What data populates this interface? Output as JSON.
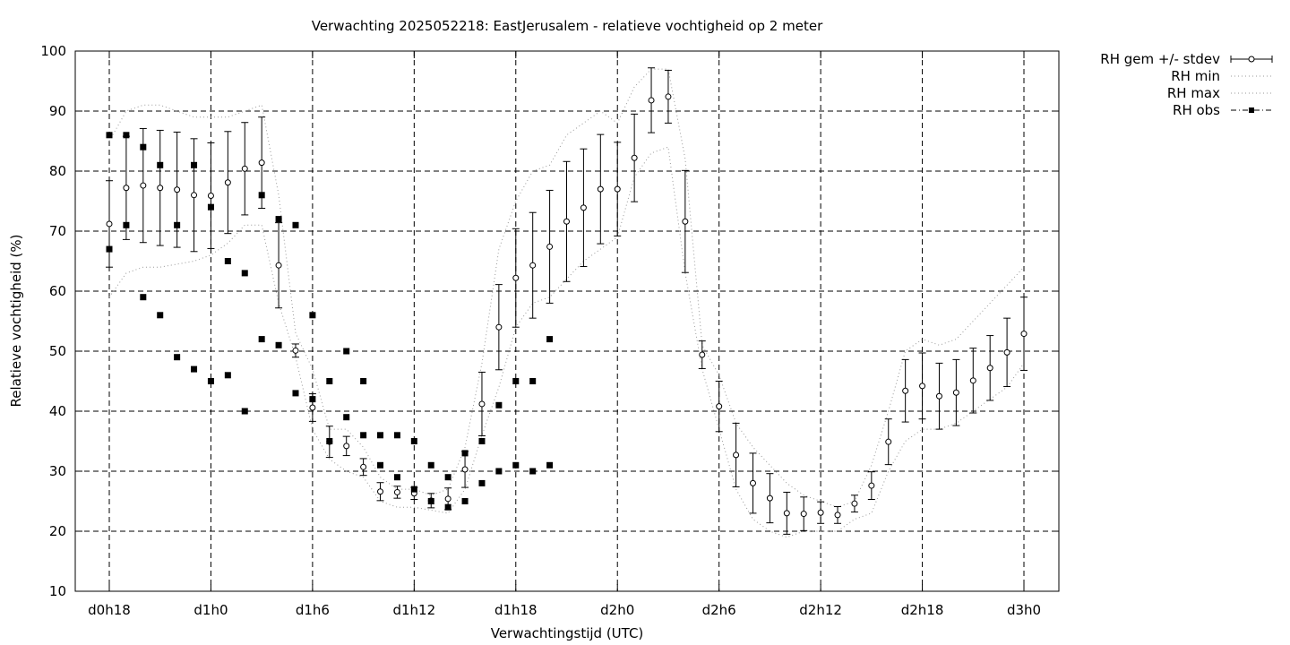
{
  "chart_data": {
    "type": "line",
    "title": "Verwachting 2025052218: EastJerusalem - relatieve vochtigheid op 2 meter",
    "xlabel": "Verwachtingstijd (UTC)",
    "ylabel": "Relatieve vochtigheid (%)",
    "xlim": [
      18,
      78
    ],
    "ylim": [
      10,
      100
    ],
    "grid": true,
    "legend_position": "outside-top-right",
    "x_ticks": [
      {
        "x": 18,
        "label": "d0h18"
      },
      {
        "x": 24,
        "label": "d1h0"
      },
      {
        "x": 30,
        "label": "d1h6"
      },
      {
        "x": 36,
        "label": "d1h12"
      },
      {
        "x": 42,
        "label": "d1h18"
      },
      {
        "x": 48,
        "label": "d2h0"
      },
      {
        "x": 54,
        "label": "d2h6"
      },
      {
        "x": 60,
        "label": "d2h12"
      },
      {
        "x": 66,
        "label": "d2h18"
      },
      {
        "x": 72,
        "label": "d3h0"
      }
    ],
    "y_ticks": [
      10,
      20,
      30,
      40,
      50,
      60,
      70,
      80,
      90,
      100
    ],
    "series": [
      {
        "name": "RH gem +/- stdev",
        "x": [
          18,
          19,
          20,
          21,
          22,
          23,
          24,
          25,
          26,
          27,
          28,
          29,
          30,
          31,
          32,
          33,
          34,
          35,
          36,
          37,
          38,
          39,
          40,
          41,
          42,
          43,
          44,
          45,
          46,
          47,
          48,
          49,
          50,
          51,
          52,
          53,
          54,
          55,
          56,
          57,
          58,
          59,
          60,
          61,
          62,
          63,
          64,
          65,
          66,
          67,
          68,
          69,
          70,
          71,
          72
        ],
        "mean": [
          71.2,
          77.2,
          77.6,
          77.2,
          76.9,
          76.0,
          75.9,
          78.1,
          80.4,
          81.4,
          64.3,
          50.1,
          40.6,
          34.9,
          34.2,
          30.7,
          26.6,
          26.5,
          26.3,
          25.1,
          25.4,
          30.3,
          41.2,
          54.0,
          62.2,
          64.3,
          67.4,
          71.6,
          73.9,
          77.0,
          77.0,
          82.2,
          91.8,
          92.4,
          71.6,
          49.4,
          40.8,
          32.7,
          28.0,
          25.5,
          23.0,
          22.9,
          23.1,
          22.7,
          24.6,
          27.6,
          34.9,
          43.4,
          44.2,
          42.5,
          43.1,
          45.1,
          47.2,
          49.8,
          52.9
        ],
        "stdev": [
          7.2,
          8.6,
          9.5,
          9.6,
          9.6,
          9.4,
          8.8,
          8.5,
          7.7,
          7.6,
          7.1,
          1.1,
          2.3,
          2.6,
          1.6,
          1.4,
          1.5,
          1.0,
          1.0,
          1.2,
          1.8,
          3.0,
          5.3,
          7.1,
          8.2,
          8.8,
          9.4,
          10.0,
          9.8,
          9.1,
          7.8,
          7.3,
          5.4,
          4.4,
          8.5,
          2.3,
          4.2,
          5.3,
          5.0,
          4.1,
          3.5,
          2.8,
          1.8,
          1.4,
          1.4,
          2.3,
          3.8,
          5.2,
          5.5,
          5.5,
          5.5,
          5.4,
          5.4,
          5.7,
          6.1
        ]
      },
      {
        "name": "RH min",
        "x": [
          18,
          19,
          20,
          21,
          22,
          23,
          24,
          25,
          26,
          27,
          28,
          29,
          30,
          31,
          32,
          33,
          34,
          35,
          36,
          37,
          38,
          39,
          40,
          41,
          42,
          43,
          44,
          45,
          46,
          47,
          48,
          49,
          50,
          51,
          52,
          53,
          54,
          55,
          56,
          57,
          58,
          59,
          60,
          61,
          62,
          63,
          64,
          65,
          66,
          67,
          68,
          69,
          70,
          71,
          72
        ],
        "values": [
          59,
          63,
          64,
          64,
          64.5,
          65,
          66,
          68,
          71,
          71,
          58,
          49,
          37,
          32,
          30,
          29,
          25,
          24,
          24,
          23.5,
          23,
          27,
          36,
          44,
          54,
          58,
          59,
          62,
          65,
          67,
          69,
          79,
          83,
          84,
          63,
          47,
          37,
          27,
          22,
          20,
          19,
          20,
          20,
          20,
          22,
          23,
          30,
          35,
          37,
          37,
          38,
          40,
          42,
          44,
          48
        ]
      },
      {
        "name": "RH max",
        "x": [
          18,
          19,
          20,
          21,
          22,
          23,
          24,
          25,
          26,
          27,
          28,
          29,
          30,
          31,
          32,
          33,
          34,
          35,
          36,
          37,
          38,
          39,
          40,
          41,
          42,
          43,
          44,
          45,
          46,
          47,
          48,
          49,
          50,
          51,
          52,
          53,
          54,
          55,
          56,
          57,
          58,
          59,
          60,
          61,
          62,
          63,
          64,
          65,
          66,
          67,
          68,
          69,
          70,
          71,
          72
        ],
        "values": [
          85,
          90,
          91,
          91,
          90,
          89,
          89,
          89,
          90,
          91,
          76,
          53,
          47,
          37,
          37,
          34,
          29,
          27,
          27,
          26,
          27,
          34,
          48,
          67,
          75,
          80,
          81,
          86,
          88,
          90,
          88,
          94,
          97,
          97,
          82,
          51,
          46,
          38,
          34,
          31,
          28,
          26,
          25,
          24,
          25,
          31,
          40,
          50,
          52,
          51,
          52,
          55,
          58,
          61,
          64
        ]
      },
      {
        "name": "RH obs",
        "groups": [
          {
            "x": [
              18,
              19,
              20,
              21,
              22,
              23,
              24,
              25,
              26,
              27,
              28,
              29,
              30,
              31,
              32,
              33,
              34,
              35,
              36,
              37,
              38,
              39,
              40,
              41,
              42,
              43,
              44
            ],
            "values": [
              67,
              71,
              59,
              56,
              49,
              47,
              45,
              46,
              40,
              52,
              51,
              43,
              42,
              35,
              39,
              36,
              31,
              29,
              27,
              25,
              24,
              25,
              28,
              30,
              31,
              30,
              31
            ]
          },
          {
            "x": [
              18,
              19,
              20,
              21,
              22,
              23,
              24,
              25,
              26,
              27,
              28,
              29,
              30,
              31,
              32,
              33,
              34,
              35,
              36,
              37,
              38,
              39,
              40,
              41,
              42,
              43,
              44
            ],
            "values": [
              86,
              86,
              84,
              81,
              71,
              81,
              74,
              65,
              63,
              76,
              72,
              71,
              56,
              45,
              50,
              45,
              36,
              36,
              35,
              31,
              29,
              33,
              35,
              41,
              45,
              45,
              52
            ]
          }
        ]
      }
    ]
  }
}
